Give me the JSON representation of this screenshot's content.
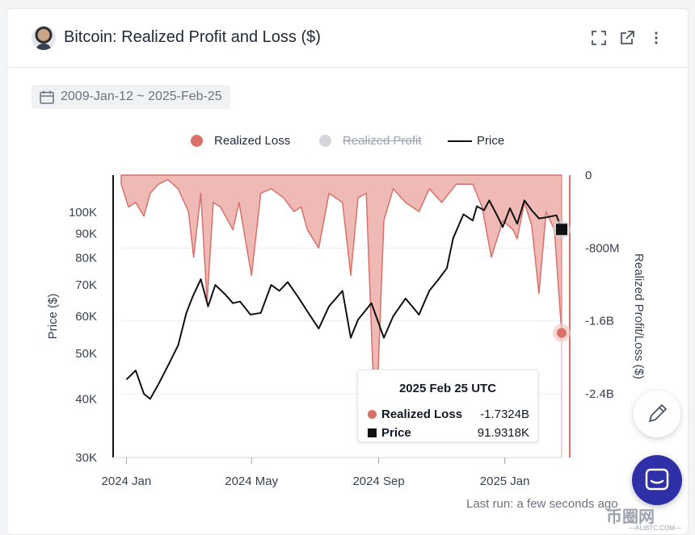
{
  "header": {
    "title": "Bitcoin: Realized Profit and Loss ($)",
    "icons": [
      "avatar",
      "fullscreen-icon",
      "external-link-icon",
      "more-vertical-icon"
    ]
  },
  "filters": {
    "date_range": "2009-Jan-12 ~ 2025-Feb-25"
  },
  "legend": {
    "items": [
      {
        "label": "Realized Loss",
        "color": "#d9706a",
        "enabled": true
      },
      {
        "label": "Realized Profit",
        "color": "#d4d4dc",
        "enabled": false
      },
      {
        "label": "Price",
        "color": "#111111",
        "enabled": true
      }
    ]
  },
  "tooltip": {
    "date": "2025 Feb 25 UTC",
    "rows": [
      {
        "name": "Realized Loss",
        "value": "-1.7324B",
        "color": "#d9706a"
      },
      {
        "name": "Price",
        "value": "91.9318K",
        "color": "#111111"
      }
    ]
  },
  "footer": {
    "last_run": "Last run: a few seconds ago"
  },
  "watermark": {
    "main": "币圈网",
    "sub": "—ALIBTC.COM—"
  },
  "chart_data": {
    "type": "line",
    "title": "Bitcoin: Realized Profit and Loss ($)",
    "x_range": [
      "2023-12-27",
      "2025-02-25"
    ],
    "x_ticks": [
      "2024 Jan",
      "2024 May",
      "2024 Sep",
      "2025 Jan"
    ],
    "y_left": {
      "label": "Price ($)",
      "scale": "log",
      "ticks": [
        "30K",
        "40K",
        "50K",
        "60K",
        "70K",
        "80K",
        "90K",
        "100K"
      ],
      "range": [
        30000,
        120000
      ]
    },
    "y_right": {
      "label": "Realized Profit/Loss ($)",
      "ticks": [
        "0",
        "-800M",
        "-1.6B",
        "-2.4B"
      ],
      "range": [
        -3100000000,
        0
      ]
    },
    "grid": true,
    "legend_position": "top",
    "series": [
      {
        "name": "Price",
        "axis": "left",
        "color": "#111111",
        "points": [
          [
            "2024-01-01",
            44000
          ],
          [
            "2024-01-10",
            46000
          ],
          [
            "2024-01-18",
            41000
          ],
          [
            "2024-01-24",
            40000
          ],
          [
            "2024-02-01",
            43000
          ],
          [
            "2024-02-10",
            47000
          ],
          [
            "2024-02-20",
            52000
          ],
          [
            "2024-02-28",
            61000
          ],
          [
            "2024-03-05",
            66000
          ],
          [
            "2024-03-13",
            72000
          ],
          [
            "2024-03-20",
            63000
          ],
          [
            "2024-03-27",
            70000
          ],
          [
            "2024-04-05",
            67000
          ],
          [
            "2024-04-13",
            64000
          ],
          [
            "2024-04-20",
            64500
          ],
          [
            "2024-04-30",
            60500
          ],
          [
            "2024-05-10",
            61000
          ],
          [
            "2024-05-20",
            70000
          ],
          [
            "2024-05-28",
            68000
          ],
          [
            "2024-06-05",
            71000
          ],
          [
            "2024-06-15",
            66000
          ],
          [
            "2024-06-25",
            61000
          ],
          [
            "2024-07-05",
            56500
          ],
          [
            "2024-07-15",
            63000
          ],
          [
            "2024-07-28",
            68000
          ],
          [
            "2024-08-05",
            54000
          ],
          [
            "2024-08-12",
            59000
          ],
          [
            "2024-08-25",
            64000
          ],
          [
            "2024-09-06",
            54000
          ],
          [
            "2024-09-15",
            60000
          ],
          [
            "2024-09-27",
            65500
          ],
          [
            "2024-10-10",
            60500
          ],
          [
            "2024-10-20",
            68000
          ],
          [
            "2024-10-29",
            72000
          ],
          [
            "2024-11-06",
            76000
          ],
          [
            "2024-11-12",
            88000
          ],
          [
            "2024-11-22",
            99000
          ],
          [
            "2024-12-01",
            96000
          ],
          [
            "2024-12-05",
            103000
          ],
          [
            "2024-12-12",
            101000
          ],
          [
            "2024-12-17",
            106000
          ],
          [
            "2024-12-25",
            98000
          ],
          [
            "2024-12-30",
            93000
          ],
          [
            "2025-01-06",
            102000
          ],
          [
            "2025-01-13",
            94500
          ],
          [
            "2025-01-20",
            106000
          ],
          [
            "2025-01-27",
            101000
          ],
          [
            "2025-02-03",
            97000
          ],
          [
            "2025-02-10",
            97500
          ],
          [
            "2025-02-20",
            98500
          ],
          [
            "2025-02-25",
            91932
          ]
        ]
      },
      {
        "name": "Realized Loss",
        "axis": "right",
        "color": "#d9706a",
        "style": "area",
        "points": [
          [
            "2023-12-27",
            -0.1
          ],
          [
            "2024-01-03",
            -0.35
          ],
          [
            "2024-01-10",
            -0.3
          ],
          [
            "2024-01-18",
            -0.45
          ],
          [
            "2024-01-24",
            -0.2
          ],
          [
            "2024-02-01",
            -0.1
          ],
          [
            "2024-02-10",
            -0.05
          ],
          [
            "2024-02-20",
            -0.15
          ],
          [
            "2024-03-01",
            -0.4
          ],
          [
            "2024-03-06",
            -0.9
          ],
          [
            "2024-03-13",
            -0.2
          ],
          [
            "2024-03-19",
            -1.4
          ],
          [
            "2024-03-25",
            -0.3
          ],
          [
            "2024-04-01",
            -0.35
          ],
          [
            "2024-04-13",
            -0.6
          ],
          [
            "2024-04-19",
            -0.3
          ],
          [
            "2024-05-01",
            -1.1
          ],
          [
            "2024-05-10",
            -0.2
          ],
          [
            "2024-05-20",
            -0.15
          ],
          [
            "2024-06-01",
            -0.25
          ],
          [
            "2024-06-11",
            -0.4
          ],
          [
            "2024-06-18",
            -0.35
          ],
          [
            "2024-06-24",
            -0.6
          ],
          [
            "2024-07-05",
            -0.8
          ],
          [
            "2024-07-15",
            -0.2
          ],
          [
            "2024-07-28",
            -0.3
          ],
          [
            "2024-08-05",
            -1.1
          ],
          [
            "2024-08-12",
            -0.25
          ],
          [
            "2024-08-20",
            -0.2
          ],
          [
            "2024-08-29",
            -2.9
          ],
          [
            "2024-09-06",
            -0.5
          ],
          [
            "2024-09-15",
            -0.15
          ],
          [
            "2024-09-27",
            -0.3
          ],
          [
            "2024-10-10",
            -0.4
          ],
          [
            "2024-10-20",
            -0.15
          ],
          [
            "2024-11-01",
            -0.3
          ],
          [
            "2024-11-15",
            -0.1
          ],
          [
            "2024-12-01",
            -0.1
          ],
          [
            "2024-12-10",
            -0.35
          ],
          [
            "2024-12-19",
            -0.9
          ],
          [
            "2024-12-30",
            -0.5
          ],
          [
            "2025-01-09",
            -0.6
          ],
          [
            "2025-01-13",
            -0.7
          ],
          [
            "2025-01-20",
            -0.3
          ],
          [
            "2025-01-27",
            -0.55
          ],
          [
            "2025-02-03",
            -1.3
          ],
          [
            "2025-02-10",
            -0.4
          ],
          [
            "2025-02-18",
            -0.6
          ],
          [
            "2025-02-25",
            -1.7324
          ]
        ]
      }
    ],
    "annotations": {
      "tooltip_date": "2025 Feb 25 UTC",
      "tooltip_loss": "-1.7324B",
      "tooltip_price": "91.9318K"
    }
  }
}
